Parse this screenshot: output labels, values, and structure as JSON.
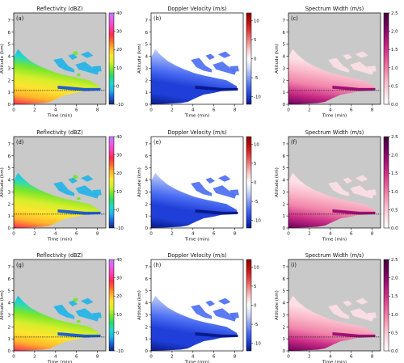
{
  "colors": {
    "background": "#c9c9c9",
    "dashed_line": "#222222",
    "reflectivity_cmap": [
      "#0b2a6e",
      "#1e5fd6",
      "#1fb4e8",
      "#22d7c8",
      "#2bd86a",
      "#7ae62a",
      "#d7ee2a",
      "#ffe330",
      "#ffb52a",
      "#ff6a2a",
      "#ff2a55",
      "#ff3fb7",
      "#e85ce8",
      "#c37cff"
    ],
    "doppler_cmap": [
      "#071a8a",
      "#1f3fd8",
      "#4a6cf2",
      "#8ea5f6",
      "#d3dbfb",
      "#ffffff",
      "#f8caca",
      "#f08484",
      "#e23b3b",
      "#c20d0d",
      "#8a0000"
    ],
    "width_cmap": [
      "#ffffff",
      "#fde0e6",
      "#f9b7c8",
      "#f185aa",
      "#e35595",
      "#c92a85",
      "#9e0f74",
      "#6c005b",
      "#45003a"
    ]
  },
  "chart_data": [
    {
      "panel_label": "(a)",
      "type": "heatmap",
      "title": "Reflectivity (dBZ)",
      "ylabel": "Altitude (km)",
      "xlabel": "Time (min)",
      "xlim": [
        0,
        8.8
      ],
      "ylim": [
        0,
        7.6
      ],
      "x_ticks": [
        0,
        2,
        4,
        6,
        8
      ],
      "y_ticks": [
        0,
        1,
        2,
        3,
        4,
        5,
        6,
        7
      ],
      "colorbar": {
        "min": -10,
        "max": 40,
        "ticks": [
          -10,
          0,
          10,
          20,
          30,
          40
        ],
        "cmap": "reflectivity"
      },
      "dashed_line_altitude": 1.15
    },
    {
      "panel_label": "(b)",
      "type": "heatmap",
      "title": "Doppler Velocity (m/s)",
      "ylabel": "Altitude (km)",
      "xlabel": "Time (min)",
      "xlim": [
        0,
        8.8
      ],
      "ylim": [
        0,
        7.6
      ],
      "x_ticks": [
        0,
        2,
        4,
        6,
        8
      ],
      "y_ticks": [
        0,
        1,
        2,
        3,
        4,
        5,
        6,
        7
      ],
      "colorbar": {
        "min": -12,
        "max": 12,
        "ticks": [
          -10,
          -5,
          0,
          5,
          10
        ],
        "cmap": "doppler"
      },
      "dashed_line_altitude": null
    },
    {
      "panel_label": "(c)",
      "type": "heatmap",
      "title": "Spectrum Width (m/s)",
      "ylabel": "Altitude (km)",
      "xlabel": "Time (min)",
      "xlim": [
        0,
        8.8
      ],
      "ylim": [
        0,
        7.6
      ],
      "x_ticks": [
        0,
        2,
        4,
        6,
        8
      ],
      "y_ticks": [
        0,
        1,
        2,
        3,
        4,
        5,
        6,
        7
      ],
      "colorbar": {
        "min": 0,
        "max": 2.5,
        "ticks": [
          0.0,
          0.5,
          1.0,
          1.5,
          2.0,
          2.5
        ],
        "cmap": "width"
      },
      "dashed_line_altitude": 1.15
    },
    {
      "panel_label": "(d)",
      "type": "heatmap",
      "title": "Reflectivity (dBZ)",
      "ylabel": "Altitude (km)",
      "xlabel": "Time (min)",
      "xlim": [
        0,
        8.8
      ],
      "ylim": [
        0,
        7.6
      ],
      "x_ticks": [
        0,
        2,
        4,
        6,
        8
      ],
      "y_ticks": [
        0,
        1,
        2,
        3,
        4,
        5,
        6,
        7
      ],
      "colorbar": {
        "min": -10,
        "max": 40,
        "ticks": [
          -10,
          0,
          10,
          20,
          30,
          40
        ],
        "cmap": "reflectivity"
      },
      "dashed_line_altitude": 1.15
    },
    {
      "panel_label": "(e)",
      "type": "heatmap",
      "title": "Doppler Velocity (m/s)",
      "ylabel": "Altitude (km)",
      "xlabel": "Time (min)",
      "xlim": [
        0,
        8.8
      ],
      "ylim": [
        0,
        7.6
      ],
      "x_ticks": [
        0,
        2,
        4,
        6,
        8
      ],
      "y_ticks": [
        0,
        1,
        2,
        3,
        4,
        5,
        6,
        7
      ],
      "colorbar": {
        "min": -12,
        "max": 12,
        "ticks": [
          -10,
          -5,
          0,
          5,
          10
        ],
        "cmap": "doppler"
      },
      "dashed_line_altitude": null
    },
    {
      "panel_label": "(f)",
      "type": "heatmap",
      "title": "Spectrum Width (m/s)",
      "ylabel": "Altitude (km)",
      "xlabel": "Time (min)",
      "xlim": [
        0,
        8.8
      ],
      "ylim": [
        0,
        7.6
      ],
      "x_ticks": [
        0,
        2,
        4,
        6,
        8
      ],
      "y_ticks": [
        0,
        1,
        2,
        3,
        4,
        5,
        6,
        7
      ],
      "colorbar": {
        "min": 0,
        "max": 2.5,
        "ticks": [
          0.0,
          0.5,
          1.0,
          1.5,
          2.0,
          2.5
        ],
        "cmap": "width"
      },
      "dashed_line_altitude": 1.15
    },
    {
      "panel_label": "(g)",
      "type": "heatmap",
      "title": "Reflectivity (dBZ)",
      "ylabel": "Altitude (km)",
      "xlabel": "Time (min)",
      "xlim": [
        0,
        8.8
      ],
      "ylim": [
        0,
        7.6
      ],
      "x_ticks": [
        0,
        2,
        4,
        6,
        8
      ],
      "y_ticks": [
        0,
        1,
        2,
        3,
        4,
        5,
        6,
        7
      ],
      "colorbar": {
        "min": -10,
        "max": 40,
        "ticks": [
          -10,
          0,
          10,
          20,
          30,
          40
        ],
        "cmap": "reflectivity"
      },
      "dashed_line_altitude": 1.15
    },
    {
      "panel_label": "(h)",
      "type": "heatmap",
      "title": "Doppler Velocity (m/s)",
      "ylabel": "Altitude (km)",
      "xlabel": "Time (min)",
      "xlim": [
        0,
        8.8
      ],
      "ylim": [
        0,
        7.6
      ],
      "x_ticks": [
        0,
        2,
        4,
        6,
        8
      ],
      "y_ticks": [
        0,
        1,
        2,
        3,
        4,
        5,
        6,
        7
      ],
      "colorbar": {
        "min": -12,
        "max": 12,
        "ticks": [
          -10,
          -5,
          0,
          5,
          10
        ],
        "cmap": "doppler"
      },
      "dashed_line_altitude": null
    },
    {
      "panel_label": "(i)",
      "type": "heatmap",
      "title": "Spectrum Width (m/s)",
      "ylabel": "Altitude (km)",
      "xlabel": "Time (min)",
      "xlim": [
        0,
        8.8
      ],
      "ylim": [
        0,
        7.6
      ],
      "x_ticks": [
        0,
        2,
        4,
        6,
        8
      ],
      "y_ticks": [
        0,
        1,
        2,
        3,
        4,
        5,
        6,
        7
      ],
      "colorbar": {
        "min": 0,
        "max": 2.5,
        "ticks": [
          0.0,
          0.5,
          1.0,
          1.5,
          2.0,
          2.5
        ],
        "cmap": "width"
      },
      "dashed_line_altitude": 1.15
    }
  ]
}
